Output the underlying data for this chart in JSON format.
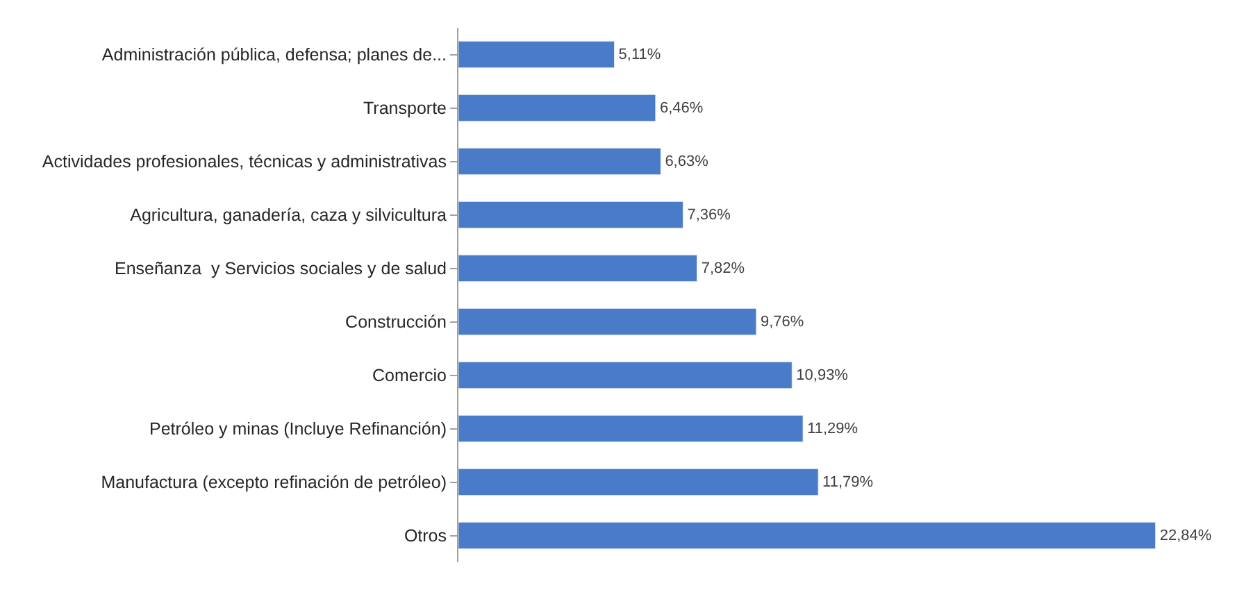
{
  "chart_data": {
    "type": "bar",
    "orientation": "horizontal",
    "categories": [
      "Administración pública, defensa; planes de...",
      "Transporte",
      "Actividades profesionales, técnicas y administrativas",
      "Agricultura, ganadería, caza y silvicultura",
      "Enseñanza  y Servicios sociales y de salud",
      "Construcción",
      "Comercio",
      "Petróleo y minas (Incluye Refinanción)",
      "Manufactura (excepto refinación de petróleo)",
      "Otros"
    ],
    "values": [
      5.11,
      6.46,
      6.63,
      7.36,
      7.82,
      9.76,
      10.93,
      11.29,
      11.79,
      22.84
    ],
    "value_labels": [
      "5,11%",
      "6,46%",
      "6,63%",
      "7,36%",
      "7,82%",
      "9,76%",
      "10,93%",
      "11,29%",
      "11,79%",
      "22,84%"
    ],
    "color": "#4a7bc8"
  }
}
